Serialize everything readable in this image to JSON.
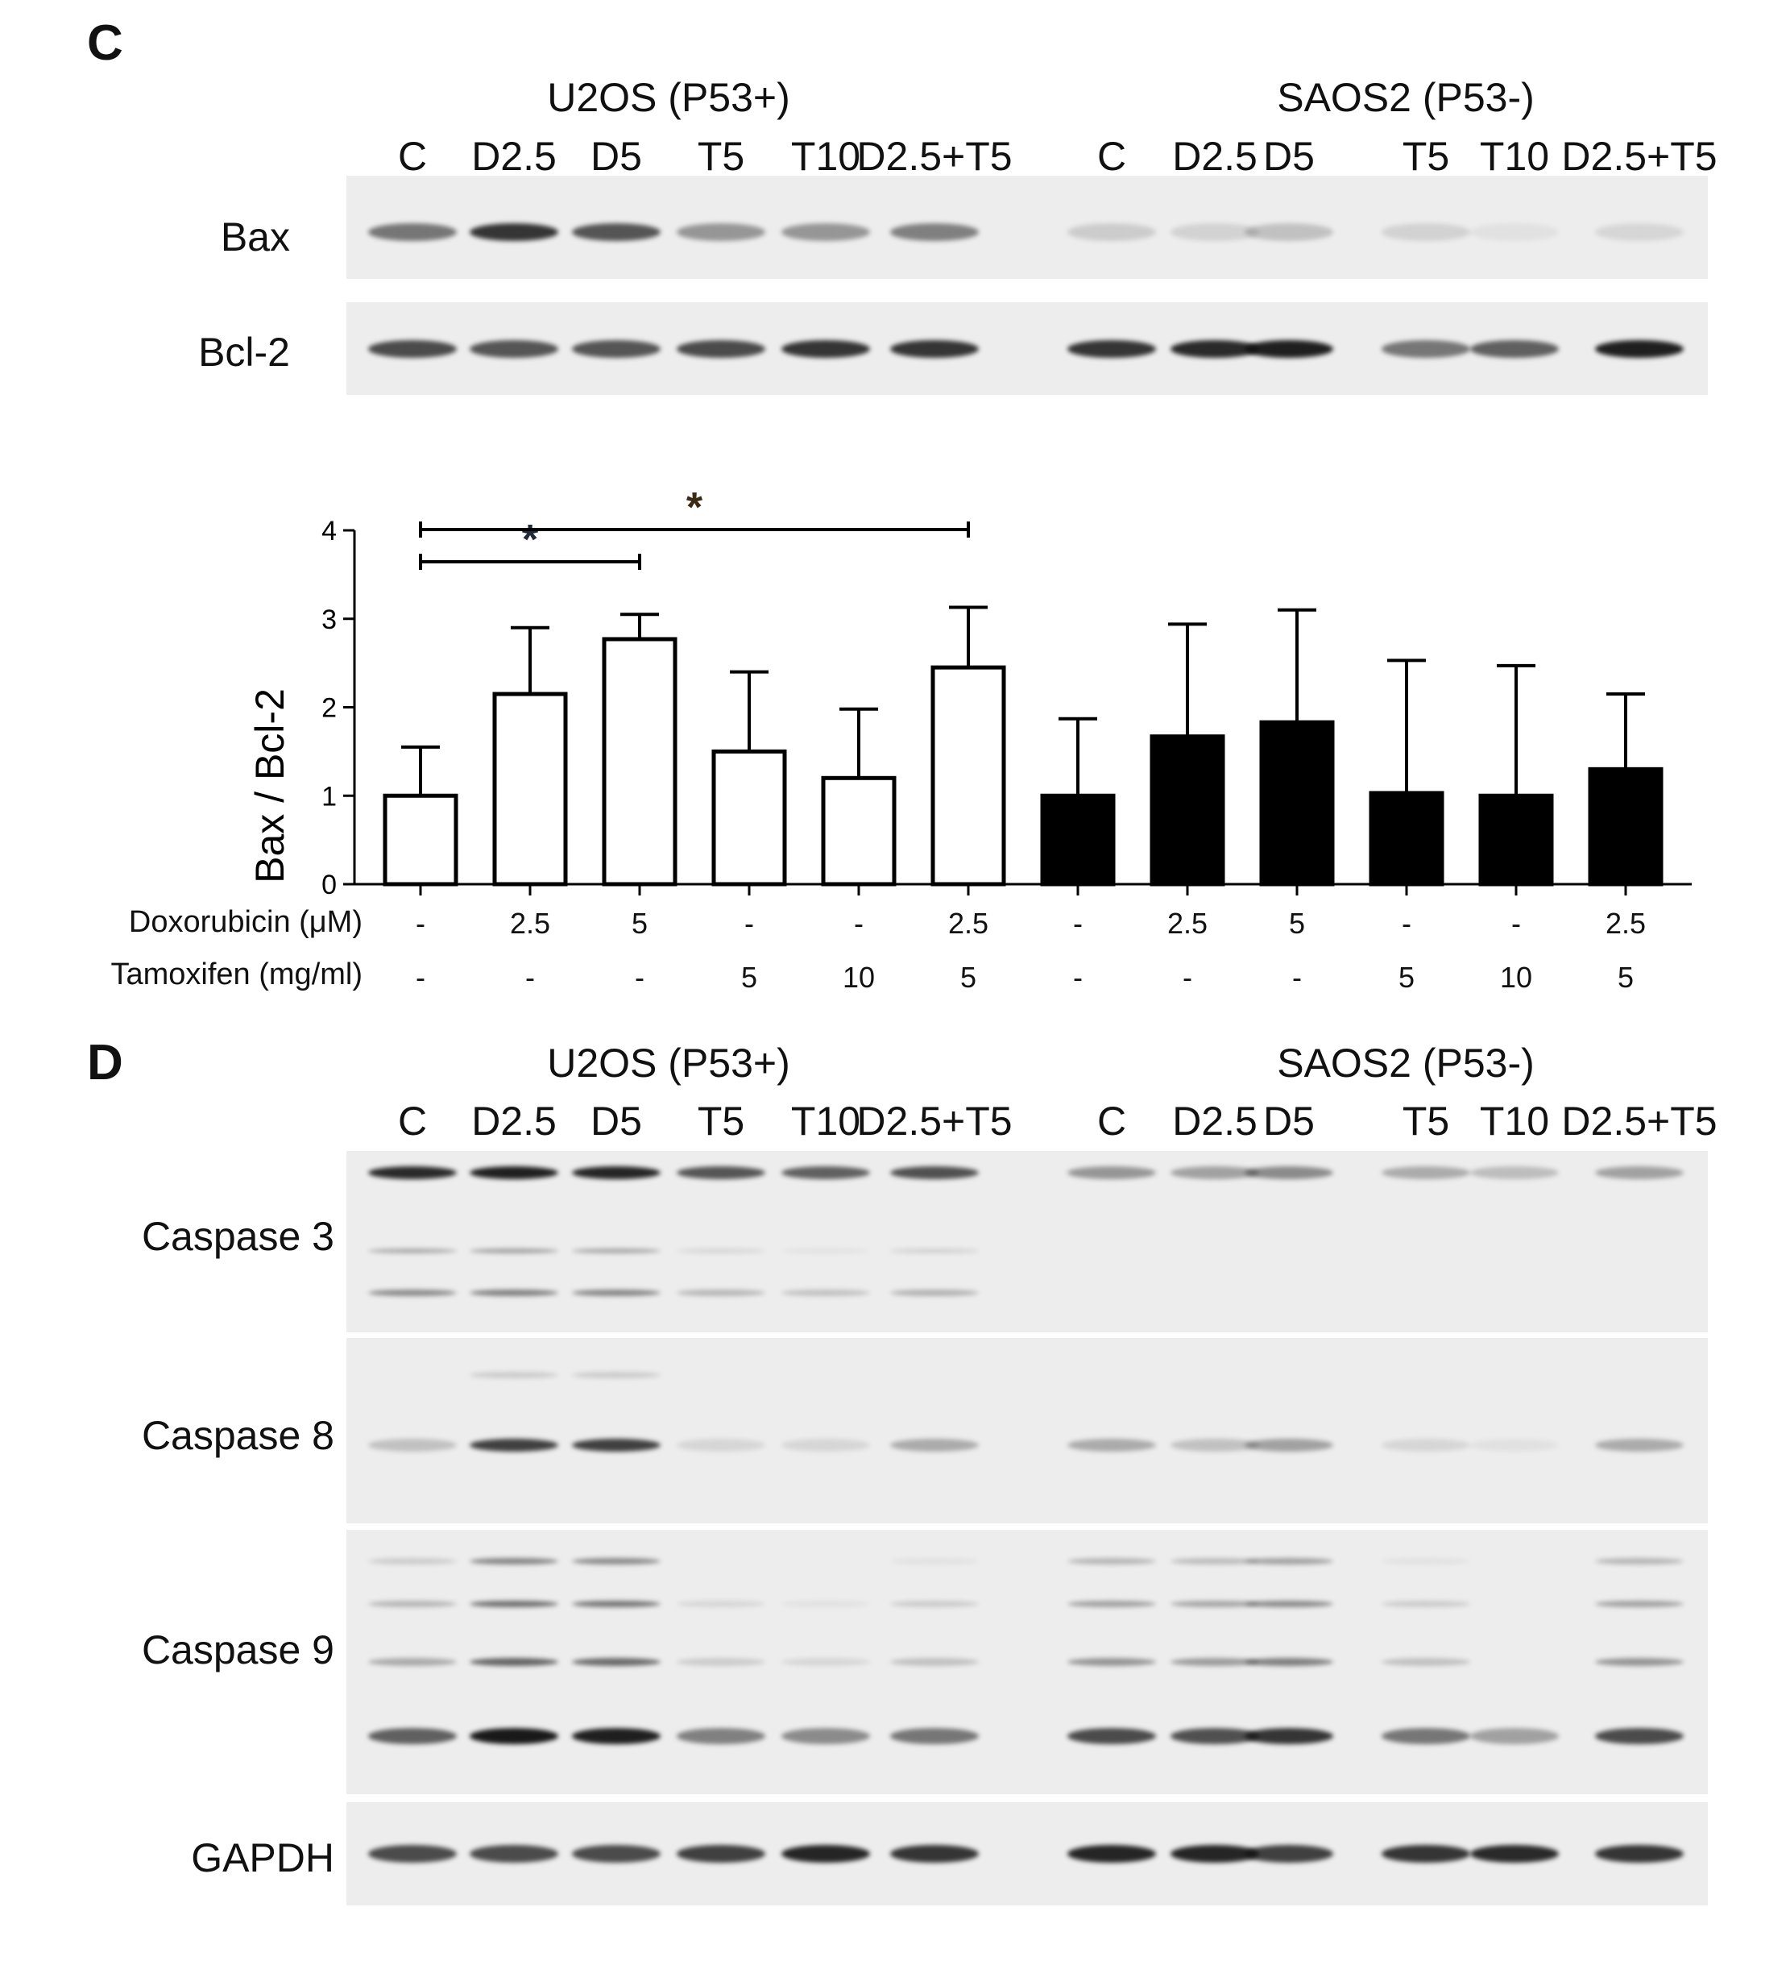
{
  "panel_c": {
    "letter": "C",
    "group_left": "U2OS (P53+)",
    "group_right": "SAOS2 (P53-)",
    "lanes": [
      "C",
      "D2.5",
      "D5",
      "T5",
      "T10",
      "D2.5+T5",
      "C",
      "D2.5",
      "D5",
      "T5",
      "T10",
      "D2.5+T5"
    ],
    "blots": [
      {
        "label": "Bax",
        "intensity": [
          0.55,
          0.85,
          0.7,
          0.4,
          0.4,
          0.5,
          0.15,
          0.12,
          0.2,
          0.12,
          0.05,
          0.1
        ]
      },
      {
        "label": "Bcl-2",
        "intensity": [
          0.75,
          0.7,
          0.7,
          0.75,
          0.85,
          0.85,
          0.85,
          0.9,
          0.95,
          0.55,
          0.65,
          0.95
        ]
      }
    ]
  },
  "chart_data": {
    "type": "bar",
    "ylabel": "Bax / Bcl-2",
    "ylim": [
      0,
      4
    ],
    "yticks": [
      0,
      1,
      2,
      3,
      4
    ],
    "values": [
      1.0,
      2.15,
      2.77,
      1.5,
      1.2,
      2.45,
      1.0,
      1.67,
      1.83,
      1.03,
      1.0,
      1.3
    ],
    "errors": [
      0.55,
      0.75,
      0.28,
      0.9,
      0.78,
      0.68,
      0.87,
      1.27,
      1.27,
      1.5,
      1.47,
      0.85
    ],
    "fill": [
      "white",
      "white",
      "white",
      "white",
      "white",
      "white",
      "black",
      "black",
      "black",
      "black",
      "black",
      "black"
    ],
    "significance": [
      {
        "from": 0,
        "to": 2,
        "label": "*"
      },
      {
        "from": 0,
        "to": 5,
        "label": "*"
      }
    ],
    "conditions": [
      {
        "label": "Doxorubicin (μM)",
        "values": [
          "-",
          "2.5",
          "5",
          "-",
          "-",
          "2.5",
          "-",
          "2.5",
          "5",
          "-",
          "-",
          "2.5"
        ]
      },
      {
        "label": "Tamoxifen (mg/ml)",
        "values": [
          "-",
          "-",
          "-",
          "5",
          "10",
          "5",
          "-",
          "-",
          "-",
          "5",
          "10",
          "5"
        ]
      }
    ],
    "colors": {
      "bar_white": "#ffffff",
      "bar_black": "#000000",
      "star_left": "#1f2b3a",
      "star_right": "#3a2a14"
    }
  },
  "panel_d": {
    "letter": "D",
    "group_left": "U2OS (P53+)",
    "group_right": "SAOS2 (P53-)",
    "lanes": [
      "C",
      "D2.5",
      "D5",
      "T5",
      "T10",
      "D2.5+T5",
      "C",
      "D2.5",
      "D5",
      "T5",
      "T10",
      "D2.5+T5"
    ],
    "blots": [
      {
        "label": "Caspase 3",
        "intensity": [
          0.9,
          0.95,
          0.92,
          0.7,
          0.65,
          0.72,
          0.4,
          0.35,
          0.45,
          0.3,
          0.22,
          0.35
        ]
      },
      {
        "label": "Caspase 8",
        "intensity": [
          0.2,
          0.8,
          0.8,
          0.1,
          0.1,
          0.3,
          0.3,
          0.2,
          0.35,
          0.1,
          0.05,
          0.3
        ]
      },
      {
        "label": "Caspase 9",
        "intensity": [
          0.65,
          0.98,
          0.95,
          0.5,
          0.45,
          0.55,
          0.75,
          0.72,
          0.85,
          0.55,
          0.35,
          0.75
        ]
      },
      {
        "label": "GAPDH",
        "intensity": [
          0.75,
          0.75,
          0.75,
          0.8,
          0.92,
          0.85,
          0.92,
          0.92,
          0.8,
          0.85,
          0.9,
          0.85
        ]
      }
    ]
  }
}
